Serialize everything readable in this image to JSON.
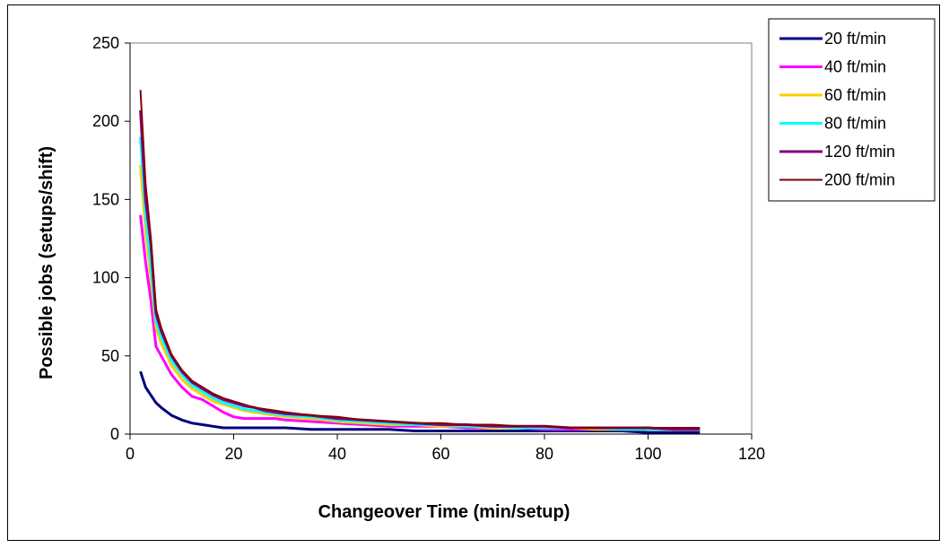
{
  "chart_data": {
    "type": "line",
    "title": "",
    "xlabel": "Changeover Time (min/setup)",
    "ylabel": "Possible jobs (setups/shift)",
    "xlim": [
      0,
      120
    ],
    "ylim": [
      0,
      250
    ],
    "xticks": [
      0,
      20,
      40,
      60,
      80,
      100,
      120
    ],
    "yticks": [
      0,
      50,
      100,
      150,
      200,
      250
    ],
    "grid": false,
    "legend_position": "right",
    "x": [
      2,
      3,
      4,
      5,
      6,
      8,
      10,
      12,
      14,
      16,
      18,
      20,
      22,
      24,
      26,
      28,
      30,
      35,
      40,
      45,
      50,
      55,
      60,
      65,
      70,
      75,
      80,
      85,
      90,
      95,
      100,
      105,
      110
    ],
    "series": [
      {
        "name": "20 ft/min",
        "color": "#000080",
        "stroke_width": 3,
        "values": [
          40,
          30,
          25,
          20,
          17,
          12,
          9,
          7,
          6,
          5,
          4,
          4,
          4,
          4,
          4,
          4,
          4,
          3,
          3,
          3,
          3,
          2,
          2,
          2,
          2,
          2,
          2,
          2,
          2,
          2,
          1,
          1,
          1
        ]
      },
      {
        "name": "40 ft/min",
        "color": "#FF00FF",
        "stroke_width": 3,
        "values": [
          140,
          110,
          86,
          56,
          50,
          38,
          30,
          24,
          22,
          18,
          14,
          11,
          10,
          10,
          10,
          10,
          9,
          8,
          7,
          6,
          5,
          5,
          5,
          4,
          4,
          4,
          3,
          3,
          3,
          3,
          3,
          3,
          3
        ]
      },
      {
        "name": "60 ft/min",
        "color": "#FFCC00",
        "stroke_width": 3,
        "values": [
          172,
          130,
          100,
          68,
          58,
          44,
          35,
          29,
          25,
          21,
          19,
          17,
          15,
          14,
          13,
          12,
          11,
          10,
          8,
          7,
          6,
          6,
          5,
          5,
          4,
          4,
          4,
          4,
          3,
          3,
          3,
          3,
          3
        ]
      },
      {
        "name": "80 ft/min",
        "color": "#00FFFF",
        "stroke_width": 3,
        "values": [
          190,
          140,
          108,
          72,
          62,
          47,
          38,
          31,
          27,
          23,
          20,
          18,
          16,
          15,
          14,
          13,
          12,
          11,
          9,
          8,
          7,
          6,
          6,
          5,
          5,
          4,
          4,
          4,
          4,
          3,
          3,
          3,
          3
        ]
      },
      {
        "name": "120 ft/min",
        "color": "#800080",
        "stroke_width": 3,
        "values": [
          207,
          150,
          122,
          77,
          66,
          50,
          40,
          33,
          29,
          25,
          22,
          20,
          18,
          17,
          15,
          14,
          13,
          12,
          10,
          9,
          8,
          7,
          6,
          6,
          5,
          5,
          5,
          4,
          4,
          4,
          4,
          3,
          3
        ]
      },
      {
        "name": "200 ft/min",
        "color": "#800000",
        "stroke_width": 2,
        "values": [
          220,
          160,
          126,
          80,
          68,
          51,
          41,
          34,
          30,
          26,
          23,
          21,
          19,
          17,
          16,
          15,
          14,
          12,
          11,
          9,
          8,
          7,
          7,
          6,
          6,
          5,
          5,
          4,
          4,
          4,
          4,
          4,
          4
        ]
      }
    ]
  }
}
